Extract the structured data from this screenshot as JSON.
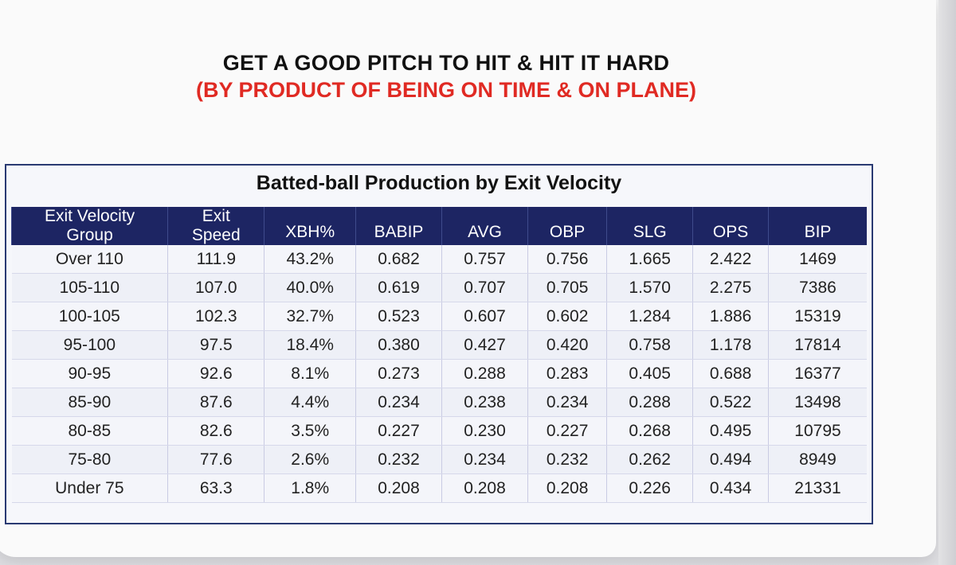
{
  "title": "GET A GOOD PITCH TO HIT & HIT IT HARD",
  "subtitle": "(BY PRODUCT OF BEING ON TIME & ON PLANE)",
  "colors": {
    "title": "#111111",
    "subtitle": "#e02a23",
    "header_bg": "#1d2563",
    "header_text": "#ffffff"
  },
  "table": {
    "caption": "Batted-ball Production by Exit Velocity",
    "headers": {
      "group_line1": "Exit Velocity",
      "group_line2": "Group",
      "speed_line1": "Exit",
      "speed_line2": "Speed",
      "xbh": "XBH%",
      "babip": "BABIP",
      "avg": "AVG",
      "obp": "OBP",
      "slg": "SLG",
      "ops": "OPS",
      "bip": "BIP"
    },
    "rows": [
      [
        "Over 110",
        "111.9",
        "43.2%",
        "0.682",
        "0.757",
        "0.756",
        "1.665",
        "2.422",
        "1469"
      ],
      [
        "105-110",
        "107.0",
        "40.0%",
        "0.619",
        "0.707",
        "0.705",
        "1.570",
        "2.275",
        "7386"
      ],
      [
        "100-105",
        "102.3",
        "32.7%",
        "0.523",
        "0.607",
        "0.602",
        "1.284",
        "1.886",
        "15319"
      ],
      [
        "95-100",
        "97.5",
        "18.4%",
        "0.380",
        "0.427",
        "0.420",
        "0.758",
        "1.178",
        "17814"
      ],
      [
        "90-95",
        "92.6",
        "8.1%",
        "0.273",
        "0.288",
        "0.283",
        "0.405",
        "0.688",
        "16377"
      ],
      [
        "85-90",
        "87.6",
        "4.4%",
        "0.234",
        "0.238",
        "0.234",
        "0.288",
        "0.522",
        "13498"
      ],
      [
        "80-85",
        "82.6",
        "3.5%",
        "0.227",
        "0.230",
        "0.227",
        "0.268",
        "0.495",
        "10795"
      ],
      [
        "75-80",
        "77.6",
        "2.6%",
        "0.232",
        "0.234",
        "0.232",
        "0.262",
        "0.494",
        "8949"
      ],
      [
        "Under 75",
        "63.3",
        "1.8%",
        "0.208",
        "0.208",
        "0.208",
        "0.226",
        "0.434",
        "21331"
      ]
    ]
  }
}
